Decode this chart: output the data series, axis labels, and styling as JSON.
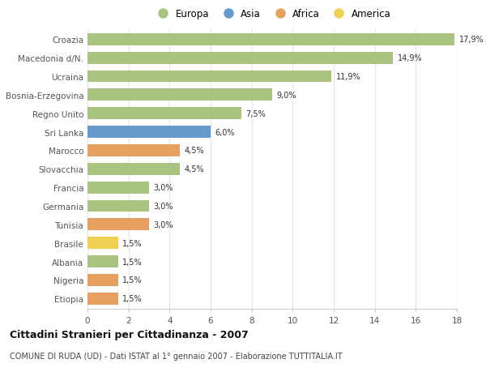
{
  "categories": [
    "Croazia",
    "Macedonia d/N.",
    "Ucraina",
    "Bosnia-Erzegovina",
    "Regno Unito",
    "Sri Lanka",
    "Marocco",
    "Slovacchia",
    "Francia",
    "Germania",
    "Tunisia",
    "Brasile",
    "Albania",
    "Nigeria",
    "Etiopia"
  ],
  "values": [
    17.9,
    14.9,
    11.9,
    9.0,
    7.5,
    6.0,
    4.5,
    4.5,
    3.0,
    3.0,
    3.0,
    1.5,
    1.5,
    1.5,
    1.5
  ],
  "labels": [
    "17,9%",
    "14,9%",
    "11,9%",
    "9,0%",
    "7,5%",
    "6,0%",
    "4,5%",
    "4,5%",
    "3,0%",
    "3,0%",
    "3,0%",
    "1,5%",
    "1,5%",
    "1,5%",
    "1,5%"
  ],
  "continents": [
    "Europa",
    "Europa",
    "Europa",
    "Europa",
    "Europa",
    "Asia",
    "Africa",
    "Europa",
    "Europa",
    "Europa",
    "Africa",
    "America",
    "Europa",
    "Africa",
    "Africa"
  ],
  "continent_colors": {
    "Europa": "#a8c480",
    "Asia": "#6699cc",
    "Africa": "#e8a060",
    "America": "#f0d050"
  },
  "legend_order": [
    "Europa",
    "Asia",
    "Africa",
    "America"
  ],
  "title": "Cittadini Stranieri per Cittadinanza - 2007",
  "subtitle": "COMUNE DI RUDA (UD) - Dati ISTAT al 1° gennaio 2007 - Elaborazione TUTTITALIA.IT",
  "xlim": [
    0,
    18
  ],
  "xticks": [
    0,
    2,
    4,
    6,
    8,
    10,
    12,
    14,
    16,
    18
  ],
  "background_color": "#ffffff",
  "bar_height": 0.65,
  "grid_color": "#e8e8e8",
  "axes_bg_color": "#ffffff"
}
